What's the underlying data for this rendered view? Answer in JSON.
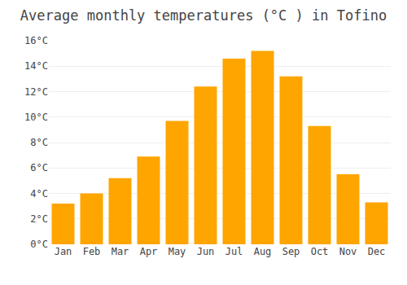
{
  "chart_data": {
    "type": "bar",
    "title": "Average monthly temperatures (°C ) in Tofino",
    "categories": [
      "Jan",
      "Feb",
      "Mar",
      "Apr",
      "May",
      "Jun",
      "Jul",
      "Aug",
      "Sep",
      "Oct",
      "Nov",
      "Dec"
    ],
    "values": [
      3.2,
      4.0,
      5.2,
      6.9,
      9.7,
      12.4,
      14.6,
      15.2,
      13.2,
      9.3,
      5.5,
      3.3
    ],
    "color": "#FFA500",
    "ylim": [
      0,
      16
    ],
    "yticks": [
      {
        "value": 0,
        "label": "0°C"
      },
      {
        "value": 2,
        "label": "2°C"
      },
      {
        "value": 4,
        "label": "4°C"
      },
      {
        "value": 6,
        "label": "6°C"
      },
      {
        "value": 8,
        "label": "8°C"
      },
      {
        "value": 10,
        "label": "10°C"
      },
      {
        "value": 12,
        "label": "12°C"
      },
      {
        "value": 14,
        "label": "14°C"
      },
      {
        "value": 16,
        "label": "16°C"
      }
    ],
    "grid": true
  }
}
